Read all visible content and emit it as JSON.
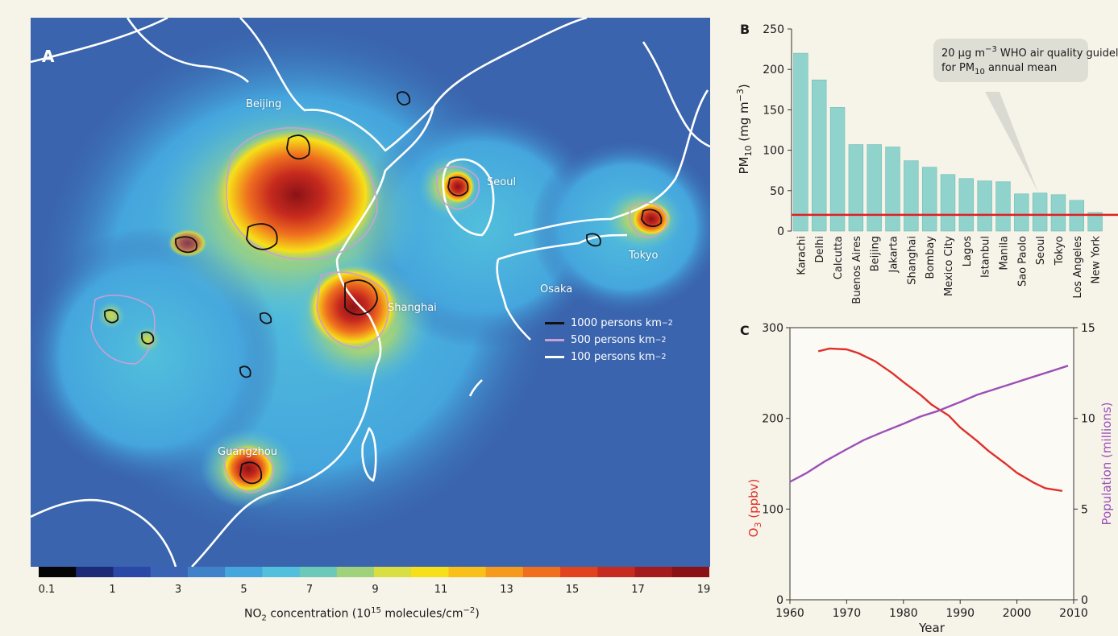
{
  "panel_a": {
    "letter": "A",
    "cities": [
      "Beijing",
      "Seoul",
      "Tokyo",
      "Osaka",
      "Shanghai",
      "Guangzhou"
    ],
    "legend": [
      {
        "value": "1000",
        "unit_base": "persons km",
        "exp": "−2",
        "color": "#111111"
      },
      {
        "value": "500",
        "unit_base": "persons km",
        "exp": "−2",
        "color": "#c9a0d6"
      },
      {
        "value": "100",
        "unit_base": "persons km",
        "exp": "−2",
        "color": "#ffffff"
      }
    ],
    "colorbar": {
      "ticks": [
        "0.1",
        "1",
        "3",
        "5",
        "7",
        "9",
        "11",
        "13",
        "15",
        "17",
        "19"
      ],
      "label_pre": "NO",
      "label_sub": "2",
      "label_mid": " concentration (10",
      "label_sup": "15",
      "label_post": " molecules/cm",
      "label_sup2": "−2",
      "label_end": ")",
      "colors": [
        "#050505",
        "#1c2a78",
        "#2c48a6",
        "#3a63b6",
        "#3f82c9",
        "#45a6dd",
        "#52bfdc",
        "#6cc8b8",
        "#a0d27c",
        "#d9df42",
        "#f7e018",
        "#f9c01a",
        "#f59a1d",
        "#ef6f1f",
        "#e2431f",
        "#c72a1e",
        "#a51a1c",
        "#8a1216"
      ]
    }
  },
  "chart_data": [
    {
      "type": "bar",
      "panel": "B",
      "categories": [
        "Karachi",
        "Delhi",
        "Calcutta",
        "Buenos Aires",
        "Beijing",
        "Jakarta",
        "Shanghai",
        "Bombay",
        "Mexico City",
        "Lagos",
        "Istanbul",
        "Manila",
        "Sao Paolo",
        "Seoul",
        "Tokyo",
        "Los Angeles",
        "New York"
      ],
      "values": [
        220,
        187,
        153,
        107,
        107,
        104,
        87,
        79,
        70,
        65,
        62,
        61,
        46,
        47,
        45,
        38,
        23
      ],
      "ylim": [
        0,
        250
      ],
      "yticks": [
        0,
        50,
        100,
        150,
        200,
        250
      ],
      "ylabel_pre": "PM",
      "ylabel_sub": "10",
      "ylabel_mid": " (mg m",
      "ylabel_sup": "−3",
      "ylabel_end": ")",
      "guideline_value": 20,
      "guideline_color": "#e02020",
      "bar_color": "#8fd3cc",
      "annotation_line1_pre": "20 μg m",
      "annotation_line1_sup": "−3",
      "annotation_line1_post": " WHO air quality guideline",
      "annotation_line2_pre": "for PM",
      "annotation_line2_sub": "10",
      "annotation_line2_post": " annual mean"
    },
    {
      "type": "line",
      "panel": "C",
      "xlabel": "Year",
      "xlim": [
        1960,
        2010
      ],
      "xticks": [
        1960,
        1970,
        1980,
        1990,
        2000,
        2010
      ],
      "y_left": {
        "ylim": [
          0,
          300
        ],
        "ticks": [
          0,
          100,
          200,
          300
        ],
        "label_pre": "O",
        "label_sub": "3",
        "label_post": " (ppbv)",
        "color": "#e0302a"
      },
      "y_right": {
        "ylim": [
          0,
          15
        ],
        "ticks": [
          0,
          5,
          10,
          15
        ],
        "label": "Population (millions)",
        "color": "#9b4fb6"
      },
      "series": [
        {
          "axis": "left",
          "color": "#e0302a",
          "x": [
            1965,
            1967,
            1970,
            1972,
            1975,
            1978,
            1980,
            1983,
            1985,
            1988,
            1990,
            1993,
            1995,
            1998,
            2000,
            2003,
            2005,
            2008
          ],
          "y": [
            274,
            277,
            276,
            272,
            263,
            250,
            240,
            226,
            215,
            203,
            190,
            175,
            164,
            150,
            140,
            129,
            123,
            120
          ]
        },
        {
          "axis": "right",
          "color": "#9b4fb6",
          "x": [
            1960,
            1963,
            1966,
            1970,
            1973,
            1976,
            1980,
            1983,
            1986,
            1990,
            1993,
            1996,
            2000,
            2003,
            2006,
            2009
          ],
          "y": [
            6.5,
            7.0,
            7.6,
            8.3,
            8.8,
            9.2,
            9.7,
            10.1,
            10.4,
            10.9,
            11.3,
            11.6,
            12.0,
            12.3,
            12.6,
            12.9
          ]
        }
      ]
    }
  ]
}
